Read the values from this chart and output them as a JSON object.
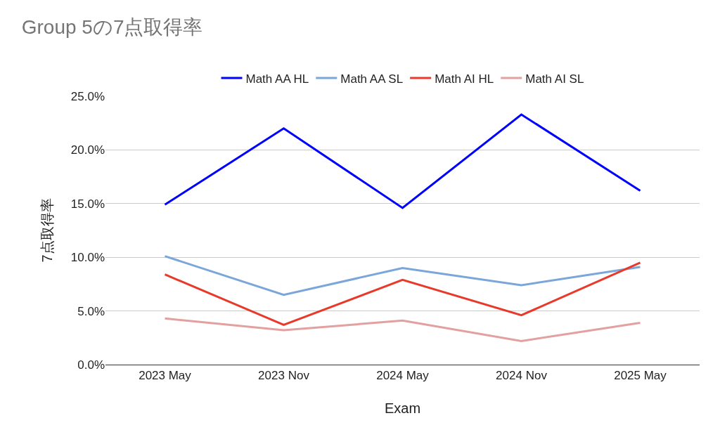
{
  "chart_data": {
    "type": "line",
    "title": "Group 5の7点取得率",
    "xlabel": "Exam",
    "ylabel": "7点取得率",
    "categories": [
      "2023 May",
      "2023 Nov",
      "2024 May",
      "2024 Nov",
      "2025 May"
    ],
    "series": [
      {
        "name": "Math AA HL",
        "color": "#0000ff",
        "values": [
          14.9,
          22.0,
          14.6,
          23.3,
          16.2
        ]
      },
      {
        "name": "Math AA SL",
        "color": "#7aa6da",
        "values": [
          10.1,
          6.5,
          9.0,
          7.4,
          9.1
        ]
      },
      {
        "name": "Math AI HL",
        "color": "#e8392a",
        "values": [
          8.4,
          3.7,
          7.9,
          4.6,
          9.5
        ]
      },
      {
        "name": "Math AI SL",
        "color": "#e3a0a0",
        "values": [
          4.3,
          3.2,
          4.1,
          2.2,
          3.9
        ]
      }
    ],
    "ylim": [
      0,
      25
    ],
    "yticks": [
      {
        "value": 0,
        "label": "0.0%"
      },
      {
        "value": 5,
        "label": "5.0%"
      },
      {
        "value": 10,
        "label": "10.0%"
      },
      {
        "value": 15,
        "label": "15.0%"
      },
      {
        "value": 20,
        "label": "20.0%"
      },
      {
        "value": 25,
        "label": "25.0%"
      }
    ],
    "grid": "y",
    "legend": "top",
    "marker": "none",
    "line_style": "solid"
  }
}
